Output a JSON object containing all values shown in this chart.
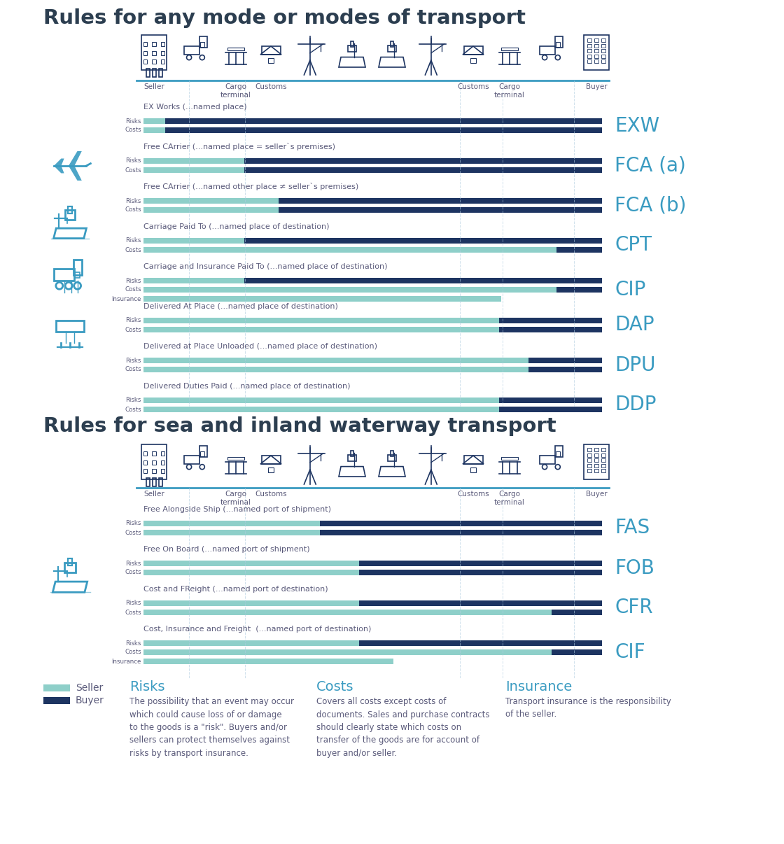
{
  "title1": "Rules for any mode or modes of transport",
  "title2": "Rules for sea and inland waterway transport",
  "seller_color": "#8ecfc9",
  "buyer_color": "#1d3461",
  "background_color": "#ffffff",
  "title_color": "#2c3e50",
  "text_color": "#5a5a7a",
  "code_color": "#3a9bc1",
  "icon_color": "#1d3461",
  "left_icon_color": "#3a9bc1",
  "any_mode_terms": [
    {
      "code": "EXW",
      "title": "EX Works (...named place)",
      "rows": [
        {
          "label": "Risks",
          "seller": 0.048,
          "buyer": 0.952
        },
        {
          "label": "Costs",
          "seller": 0.048,
          "buyer": 0.952
        }
      ]
    },
    {
      "code": "FCA (a)",
      "title": "Free CArrier (...named place = seller`s premises)",
      "rows": [
        {
          "label": "Risks",
          "seller": 0.22,
          "buyer": 0.78
        },
        {
          "label": "Costs",
          "seller": 0.22,
          "buyer": 0.78
        }
      ]
    },
    {
      "code": "FCA (b)",
      "title": "Free CArrier (...named other place ≠ seller`s premises)",
      "rows": [
        {
          "label": "Risks",
          "seller": 0.295,
          "buyer": 0.705
        },
        {
          "label": "Costs",
          "seller": 0.295,
          "buyer": 0.705
        }
      ]
    },
    {
      "code": "CPT",
      "title": "Carriage Paid To (...named place of destination)",
      "rows": [
        {
          "label": "Risks",
          "seller": 0.22,
          "buyer": 0.78
        },
        {
          "label": "Costs",
          "seller": 0.22,
          "green": 0.68,
          "dark": 0.1
        }
      ]
    },
    {
      "code": "CIP",
      "title": "Carriage and Insurance Paid To (...named place of destination)",
      "rows": [
        {
          "label": "Risks",
          "seller": 0.22,
          "buyer": 0.78
        },
        {
          "label": "Costs",
          "seller": 0.22,
          "green": 0.68,
          "dark": 0.1
        },
        {
          "label": "Insurance",
          "seller": 0.22,
          "green": 0.56,
          "dark": 0.0
        }
      ]
    },
    {
      "code": "DAP",
      "title": "Delivered At Place (...named place of destination)",
      "rows": [
        {
          "label": "Risks",
          "seller": 0.775,
          "buyer": 0.225
        },
        {
          "label": "Costs",
          "seller": 0.775,
          "buyer": 0.225
        }
      ]
    },
    {
      "code": "DPU",
      "title": "Delivered at Place Unloaded (...named place of destination)",
      "rows": [
        {
          "label": "Risks",
          "seller": 0.84,
          "buyer": 0.16
        },
        {
          "label": "Costs",
          "seller": 0.84,
          "buyer": 0.16
        }
      ]
    },
    {
      "code": "DDP",
      "title": "Delivered Duties Paid (...named place of destination)",
      "rows": [
        {
          "label": "Risks",
          "seller": 0.775,
          "buyer": 0.225
        },
        {
          "label": "Costs",
          "seller": 0.775,
          "buyer": 0.225
        }
      ]
    }
  ],
  "sea_terms": [
    {
      "code": "FAS",
      "title": "Free Alongside Ship (...named port of shipment)",
      "rows": [
        {
          "label": "Risks",
          "seller": 0.385,
          "buyer": 0.615
        },
        {
          "label": "Costs",
          "seller": 0.385,
          "buyer": 0.615
        }
      ]
    },
    {
      "code": "FOB",
      "title": "Free On Board (...named port of shipment)",
      "rows": [
        {
          "label": "Risks",
          "seller": 0.47,
          "buyer": 0.53
        },
        {
          "label": "Costs",
          "seller": 0.47,
          "buyer": 0.53
        }
      ]
    },
    {
      "code": "CFR",
      "title": "Cost and FReight (...named port of destination)",
      "rows": [
        {
          "label": "Risks",
          "seller": 0.47,
          "buyer": 0.53
        },
        {
          "label": "Costs",
          "seller": 0.47,
          "green": 0.42,
          "dark": 0.11
        }
      ]
    },
    {
      "code": "CIF",
      "title": "Cost, Insurance and Freight  (...named port of destination)",
      "rows": [
        {
          "label": "Risks",
          "seller": 0.47,
          "buyer": 0.53
        },
        {
          "label": "Costs",
          "seller": 0.47,
          "green": 0.42,
          "dark": 0.11
        },
        {
          "label": "Insurance",
          "seller": 0.47,
          "green": 0.075,
          "dark": 0.0
        }
      ]
    }
  ],
  "risks_title": "Risks",
  "costs_title": "Costs",
  "insurance_title": "Insurance",
  "risks_text": "The possibility that an event may occur\nwhich could cause loss of or damage\nto the goods is a \"risk\". Buyers and/or\nsellers can protect themselves against\nrisks by transport insurance.",
  "costs_text": "Covers all costs except costs of\ndocuments. Sales and purchase contracts\nshould clearly state which costs on\ntransfer of the goods are for account of\nbuyer and/or seller.",
  "insurance_text": "Transport insurance is the responsibility\nof the seller.",
  "seller_label": "Seller",
  "buyer_label": "Buyer"
}
